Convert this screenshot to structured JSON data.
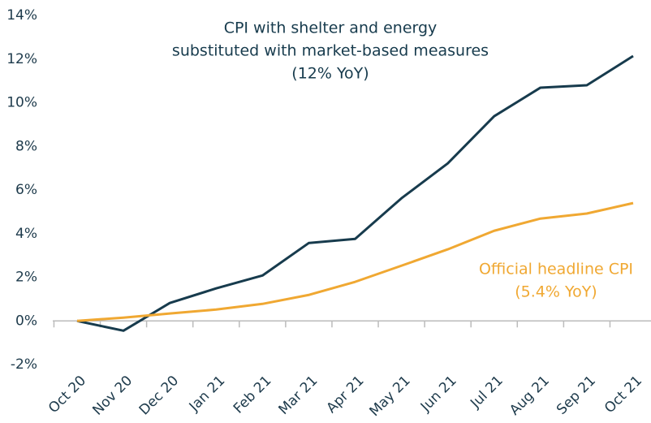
{
  "chart_data": {
    "type": "line",
    "categories": [
      "Oct 20",
      "Nov 20",
      "Dec 20",
      "Jan 21",
      "Feb 21",
      "Mar 21",
      "Apr 21",
      "May 21",
      "Jun 21",
      "Jul 21",
      "Aug 21",
      "Sep 21",
      "Oct 21"
    ],
    "series": [
      {
        "name": "CPI with shelter and energy substituted with market-based measures",
        "color": "#173b4d",
        "values": [
          0,
          -0.45,
          0.82,
          1.49,
          2.08,
          3.57,
          3.76,
          5.62,
          7.22,
          9.38,
          10.69,
          10.8,
          12.14
        ]
      },
      {
        "name": "Official headline CPI",
        "color": "#f0a832",
        "values": [
          0,
          0.15,
          0.34,
          0.52,
          0.78,
          1.19,
          1.79,
          2.53,
          3.28,
          4.13,
          4.69,
          4.92,
          5.4
        ]
      }
    ],
    "annotations": [
      {
        "lines": [
          "CPI with shelter and energy",
          "substituted with market-based measures",
          "(12% YoY)"
        ],
        "color": "#173b4d"
      },
      {
        "lines": [
          "Official headline CPI",
          "(5.4% YoY)"
        ],
        "color": "#f0a832"
      }
    ],
    "ylim": [
      -2,
      14
    ],
    "yticks": [
      {
        "value": -2,
        "label": "-2%"
      },
      {
        "value": 0,
        "label": "0%"
      },
      {
        "value": 2,
        "label": "2%"
      },
      {
        "value": 4,
        "label": "4%"
      },
      {
        "value": 6,
        "label": "6%"
      },
      {
        "value": 8,
        "label": "8%"
      },
      {
        "value": 10,
        "label": "10%"
      },
      {
        "value": 12,
        "label": "12%"
      },
      {
        "value": 14,
        "label": "14%"
      }
    ],
    "grid": false
  }
}
